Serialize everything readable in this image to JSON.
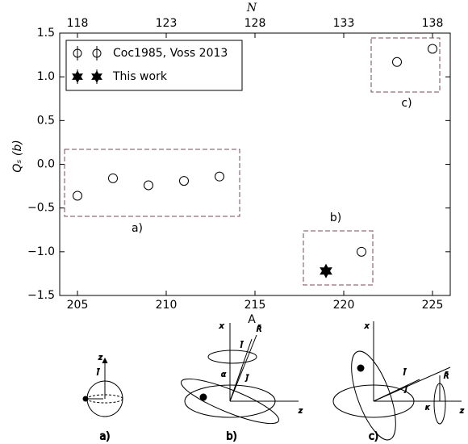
{
  "chart_data": {
    "type": "scatter",
    "xlabel": "A",
    "x2label": "N",
    "ylabel": "Qₛ (b)",
    "xlim": [
      204,
      226
    ],
    "xticks": [
      205,
      210,
      215,
      220,
      225
    ],
    "x2lim": [
      117,
      139
    ],
    "x2ticks": [
      118,
      123,
      128,
      133,
      138
    ],
    "ylim": [
      -1.5,
      1.5
    ],
    "yticks": [
      {
        "value": -1.5,
        "label": "−1.5"
      },
      {
        "value": -1.0,
        "label": "−1.0"
      },
      {
        "value": -0.5,
        "label": "−0.5"
      },
      {
        "value": 0.0,
        "label": "0.0"
      },
      {
        "value": 0.5,
        "label": "0.5"
      },
      {
        "value": 1.0,
        "label": "1.0"
      },
      {
        "value": 1.5,
        "label": "1.5"
      }
    ],
    "grid": false,
    "legend": "upper left",
    "series": [
      {
        "name": "Coc1985, Voss 2013",
        "marker": "circle",
        "color": "#000000",
        "x": [
          205,
          207,
          209,
          211,
          213,
          221,
          223,
          225
        ],
        "values": [
          -0.36,
          -0.16,
          -0.24,
          -0.19,
          -0.14,
          -1.0,
          1.17,
          1.32
        ]
      },
      {
        "name": "This work",
        "marker": "star",
        "color": "#000000",
        "x": [
          219
        ],
        "values": [
          -1.22
        ]
      }
    ],
    "annotations": [
      "a)",
      "b)",
      "c)"
    ]
  },
  "diagrams": {
    "a": {
      "label": "a)",
      "texts": [
        "z",
        "Ī"
      ]
    },
    "b": {
      "label": "b)",
      "texts": [
        "x",
        "z",
        "Ī",
        "R̄",
        "j̄",
        "α"
      ]
    },
    "c": {
      "label": "c)",
      "texts": [
        "x",
        "z",
        "Ī",
        "j̄",
        "R̄",
        "κ"
      ]
    }
  }
}
